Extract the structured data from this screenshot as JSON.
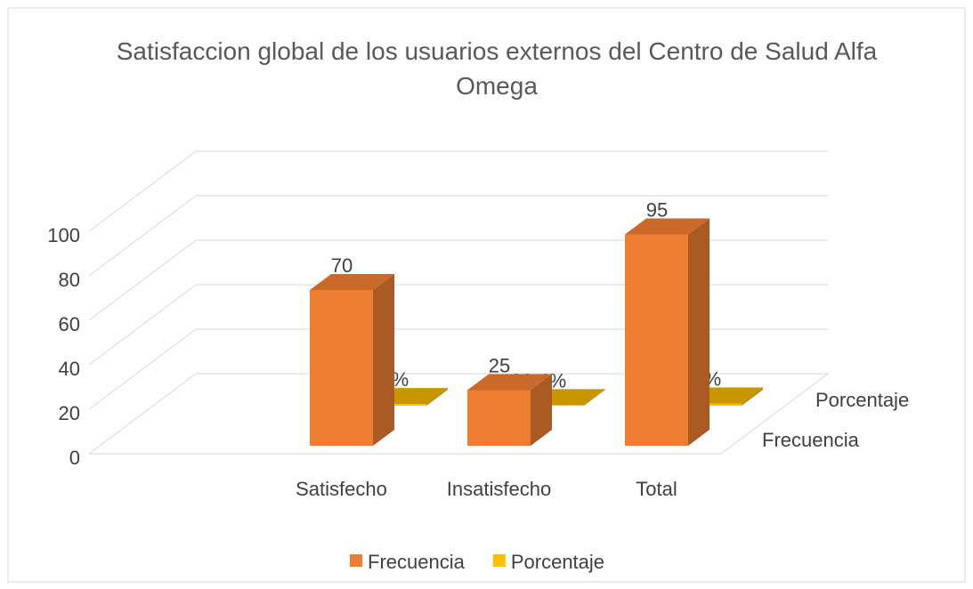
{
  "chart_data": {
    "type": "bar3d",
    "title": "Satisfaccion global de los usuarios externos del Centro de Salud Alfa Omega",
    "categories": [
      "Satisfecho",
      "Insatisfecho",
      "Total"
    ],
    "series": [
      {
        "name": "Frecuencia",
        "color": "#ED7D31",
        "values": [
          70,
          25,
          95
        ]
      },
      {
        "name": "Porcentaje",
        "color": "#FFC000",
        "values": [
          0.736,
          0.264,
          1
        ],
        "value_labels": [
          "73,6%",
          "26,4%",
          "100%"
        ]
      }
    ],
    "ylim": [
      0,
      100
    ],
    "yticks": [
      0,
      20,
      40,
      60,
      80,
      100
    ],
    "grid": true,
    "legend": "bottom"
  }
}
